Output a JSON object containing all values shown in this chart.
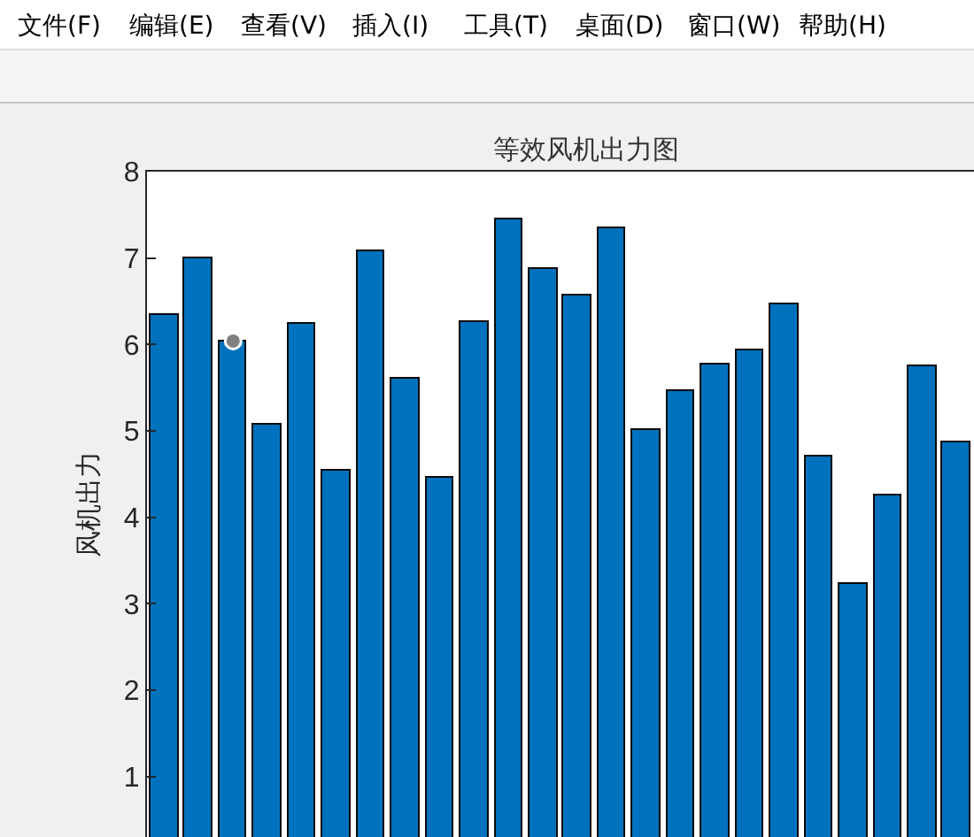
{
  "chart_data": {
    "type": "bar",
    "title": "等效风机出力图",
    "ylabel": "风机出力",
    "categories": [
      null,
      null,
      null,
      null,
      null,
      null,
      null,
      null,
      null,
      null,
      null,
      null,
      null,
      null,
      null,
      null,
      null,
      null,
      null,
      null,
      null,
      null,
      null,
      null
    ],
    "series": [
      {
        "color": "#0072bd",
        "values": [
          6.35,
          6.99,
          6.04,
          5.07,
          6.23,
          4.53,
          7.07,
          5.6,
          4.45,
          6.25,
          7.44,
          6.88,
          6.56,
          7.35,
          5.0,
          5.47,
          5.76,
          5.94,
          6.47,
          4.7,
          3.22,
          4.26,
          5.74,
          4.87
        ]
      },
      {
        "type": "scatter",
        "values": [
          null,
          null,
          6.04,
          null,
          null,
          null,
          null,
          null,
          null,
          null,
          null,
          null,
          null,
          null,
          null,
          null,
          null,
          null,
          null,
          null,
          null,
          null,
          null,
          null
        ],
        "color": "#808080",
        "marker": "circle"
      }
    ],
    "ylim": [
      0.3,
      8
    ],
    "yticks": [
      1,
      2,
      3,
      4,
      5,
      6,
      7,
      8
    ],
    "annotations": [
      "文件(F)",
      "编辑(E)",
      "查看(V)",
      "插入(I)",
      "工具(T)",
      "桌面(D)",
      "窗口(W)",
      "帮助(H)"
    ]
  }
}
